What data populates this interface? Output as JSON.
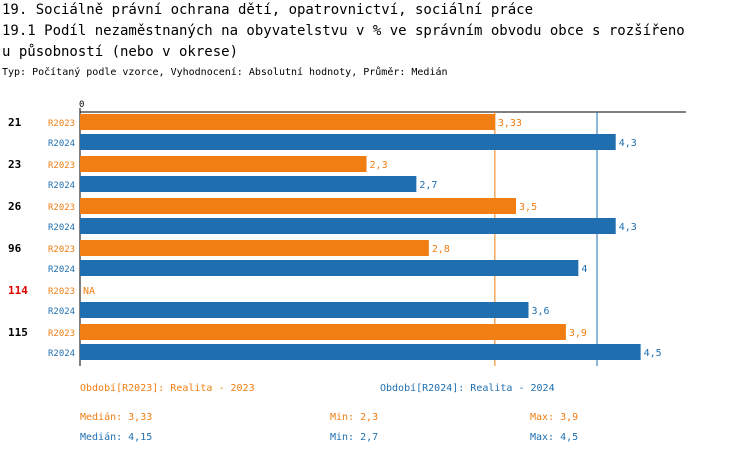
{
  "header": {
    "line1": "19. Sociálně právní ochrana dětí, opatrovnictví, sociální práce",
    "line2": "19.1 Podíl nezaměstnaných na obyvatelstvu v % ve správním obvodu obce s rozšířeno",
    "line3": "u působností (nebo v okrese)",
    "subtitle": "Typ: Počítaný podle vzorce, Vyhodnocení: Absolutní hodnoty, Průměr: Medián"
  },
  "colors": {
    "r2023": "#f07e12",
    "r2024": "#1f6fb0",
    "highlight_label": "#dd0000"
  },
  "chart_data": {
    "type": "bar",
    "orientation": "horizontal",
    "axis_zero_label": "0",
    "xlim": [
      0,
      4.8
    ],
    "categories": [
      "21",
      "23",
      "26",
      "96",
      "114",
      "115"
    ],
    "highlighted_category": "114",
    "series": [
      {
        "name": "R2023",
        "values": [
          3.33,
          2.3,
          3.5,
          2.8,
          null,
          3.9
        ],
        "value_labels": [
          "3,33",
          "2,3",
          "3,5",
          "2,8",
          "NA",
          "3,9"
        ]
      },
      {
        "name": "R2024",
        "values": [
          4.3,
          2.7,
          4.3,
          4.0,
          3.6,
          4.5
        ],
        "value_labels": [
          "4,3",
          "2,7",
          "4,3",
          "4",
          "3,6",
          "4,5"
        ]
      }
    ],
    "median_lines": [
      {
        "series": "R2023",
        "value": 3.33
      },
      {
        "series": "R2024",
        "value": 4.15
      }
    ]
  },
  "legend": {
    "r2023_period": "Období[R2023]: Realita - 2023",
    "r2024_period": "Období[R2024]: Realita - 2024",
    "r2023_median": "Medián: 3,33",
    "r2023_min": "Min: 2,3",
    "r2023_max": "Max: 3,9",
    "r2024_median": "Medián: 4,15",
    "r2024_min": "Min: 2,7",
    "r2024_max": "Max: 4,5"
  }
}
